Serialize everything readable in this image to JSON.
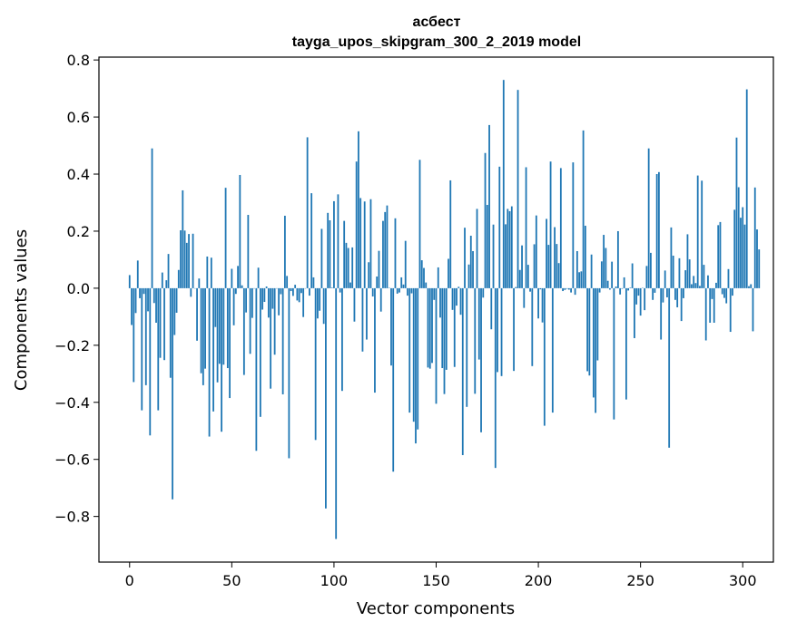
{
  "chart_data": {
    "type": "bar",
    "title": "асбест",
    "subtitle": "tayga_upos_skipgram_300_2_2019 model",
    "xlabel": "Vector components",
    "ylabel": "Components values",
    "xlim": [
      -15,
      315
    ],
    "ylim": [
      -0.96,
      0.81
    ],
    "xticks": [
      0,
      50,
      100,
      150,
      200,
      250,
      300
    ],
    "xtick_labels": [
      "0",
      "50",
      "100",
      "150",
      "200",
      "250",
      "300"
    ],
    "yticks": [
      -0.8,
      -0.6,
      -0.4,
      -0.2,
      0.0,
      0.2,
      0.4,
      0.6,
      0.8
    ],
    "ytick_labels": [
      "−0.8",
      "−0.6",
      "−0.4",
      "−0.2",
      "0.0",
      "0.2",
      "0.4",
      "0.6",
      "0.8"
    ],
    "bar_color": "#1f77b4",
    "grid": false,
    "values": [
      0.046,
      -0.129,
      -0.329,
      -0.087,
      0.097,
      -0.035,
      -0.428,
      -0.02,
      -0.34,
      -0.081,
      -0.516,
      0.49,
      -0.052,
      -0.121,
      -0.428,
      -0.244,
      0.055,
      -0.252,
      0.028,
      0.12,
      -0.314,
      -0.74,
      -0.164,
      -0.086,
      0.064,
      0.203,
      0.343,
      0.202,
      0.159,
      0.19,
      -0.03,
      0.191,
      -0.001,
      -0.184,
      0.034,
      -0.298,
      -0.34,
      -0.282,
      0.111,
      -0.52,
      0.107,
      -0.432,
      -0.136,
      -0.33,
      -0.265,
      -0.503,
      -0.268,
      0.352,
      -0.28,
      -0.385,
      0.068,
      -0.13,
      -0.02,
      0.078,
      0.397,
      0.01,
      -0.304,
      -0.085,
      0.257,
      -0.23,
      -0.104,
      -0.001,
      -0.57,
      0.072,
      -0.451,
      -0.075,
      -0.048,
      0.006,
      -0.103,
      -0.352,
      -0.072,
      -0.233,
      -0.001,
      -0.095,
      -0.021,
      -0.372,
      0.254,
      0.043,
      -0.596,
      -0.01,
      -0.027,
      0.012,
      -0.043,
      -0.049,
      -0.017,
      -0.101,
      0.0,
      0.529,
      -0.026,
      0.333,
      0.038,
      -0.532,
      -0.106,
      -0.079,
      0.208,
      -0.125,
      -0.772,
      0.264,
      0.238,
      0.002,
      0.305,
      -0.879,
      0.329,
      -0.015,
      -0.36,
      0.236,
      0.159,
      0.141,
      0.02,
      0.143,
      -0.117,
      0.444,
      0.55,
      0.316,
      -0.222,
      0.304,
      -0.18,
      0.091,
      0.312,
      -0.029,
      -0.366,
      0.041,
      0.131,
      -0.082,
      0.236,
      0.267,
      0.29,
      0.001,
      -0.271,
      -0.643,
      0.245,
      -0.019,
      -0.015,
      0.038,
      0.013,
      0.166,
      -0.026,
      -0.436,
      -0.018,
      -0.468,
      -0.544,
      -0.495,
      0.45,
      0.098,
      0.071,
      0.02,
      -0.278,
      -0.282,
      -0.262,
      -0.041,
      -0.405,
      0.073,
      -0.103,
      -0.28,
      -0.371,
      -0.286,
      0.103,
      0.378,
      -0.076,
      -0.276,
      -0.061,
      0.005,
      -0.093,
      -0.585,
      0.212,
      -0.416,
      0.083,
      0.184,
      0.13,
      -0.37,
      0.278,
      -0.25,
      -0.505,
      -0.033,
      0.474,
      0.292,
      0.572,
      -0.144,
      0.223,
      -0.63,
      -0.294,
      0.426,
      -0.308,
      0.73,
      0.224,
      0.278,
      0.27,
      0.287,
      -0.29,
      0.004,
      0.695,
      0.064,
      0.15,
      -0.069,
      0.424,
      0.082,
      -0.012,
      -0.273,
      0.154,
      0.255,
      -0.106,
      -0.004,
      -0.12,
      -0.482,
      0.243,
      0.152,
      0.444,
      -0.436,
      0.214,
      0.155,
      0.088,
      0.421,
      -0.01,
      -0.006,
      -0.002,
      -0.005,
      -0.015,
      0.441,
      -0.023,
      0.13,
      0.056,
      0.059,
      0.553,
      0.219,
      -0.291,
      -0.306,
      0.118,
      -0.383,
      -0.437,
      -0.253,
      -0.015,
      0.094,
      0.187,
      0.141,
      0.026,
      -0.005,
      0.093,
      -0.46,
      0.006,
      0.2,
      -0.022,
      -0.002,
      0.038,
      -0.39,
      -0.008,
      0.002,
      0.087,
      -0.175,
      -0.057,
      -0.026,
      -0.096,
      0.001,
      -0.077,
      0.078,
      0.49,
      0.124,
      -0.041,
      -0.016,
      0.4,
      0.407,
      -0.18,
      -0.05,
      0.062,
      -0.032,
      -0.559,
      0.213,
      0.114,
      -0.041,
      -0.067,
      0.105,
      -0.115,
      -0.035,
      0.063,
      0.189,
      0.101,
      0.014,
      0.043,
      0.018,
      0.395,
      0.008,
      0.377,
      0.082,
      -0.183,
      0.045,
      -0.121,
      -0.038,
      -0.121,
      0.019,
      0.221,
      0.232,
      -0.021,
      -0.034,
      -0.053,
      0.067,
      -0.153,
      -0.026,
      0.275,
      0.528,
      0.354,
      0.247,
      0.284,
      0.223,
      0.697,
      0.007,
      0.014,
      -0.151,
      0.353,
      0.206,
      0.136
    ],
    "note": "values approximated from the rendered bars"
  }
}
